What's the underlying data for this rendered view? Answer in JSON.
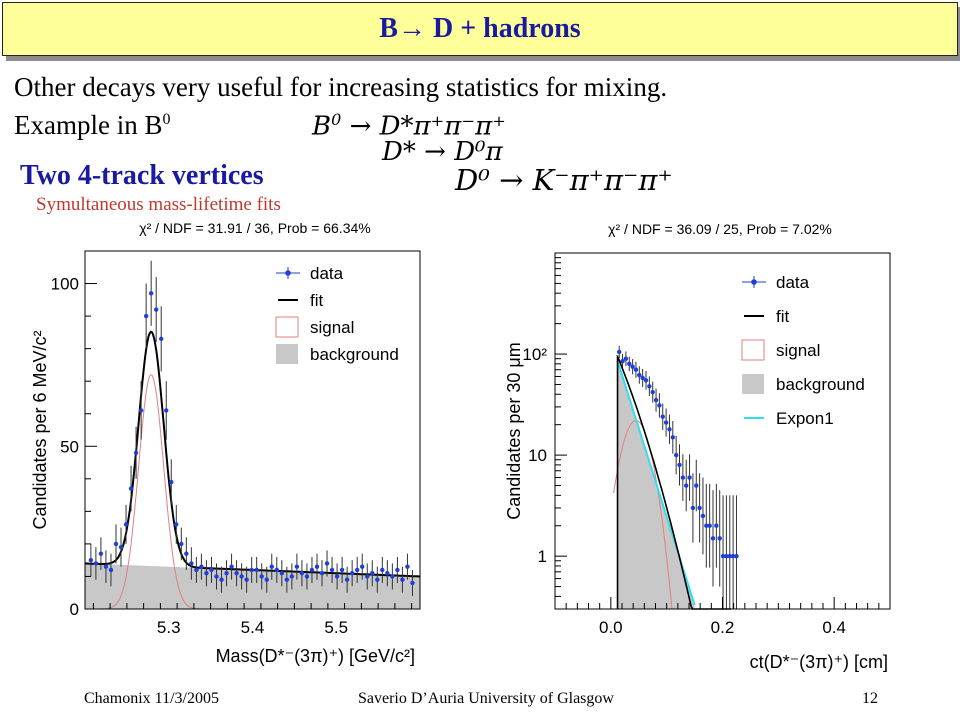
{
  "slide": {
    "title": "B→ D + hadrons",
    "line1": "Other decays very useful for increasing statistics for mixing.",
    "line2_prefix": "Example in B",
    "line2_sup": "0",
    "subtitle": "Two 4-track vertices",
    "note": "Symultaneous mass-lifetime fits"
  },
  "equations": {
    "eq1": {
      "lhs": "B",
      "lhs_sup": "0",
      "arrow": "→",
      "rhs": "D*π⁺π⁻π⁺"
    },
    "eq2": {
      "lhs": "D*",
      "arrow": "→",
      "rhs": "D⁰π"
    },
    "eq3": {
      "lhs": "D⁰",
      "arrow": "→",
      "rhs": "K⁻π⁺π⁻π⁺"
    }
  },
  "footer": {
    "left": "Chamonix 11/3/2005",
    "center": "Saverio D’Auria University of Glasgow",
    "page": "12"
  },
  "colors": {
    "title_bg": "#ffff99",
    "title_text": "#1a1aa0",
    "note": "#c0392b",
    "data": "#1f3fd9",
    "signal": "#e08080",
    "background": "#c8c8c8",
    "expon": "#33ddee"
  },
  "chart_data": [
    {
      "type": "line",
      "title": "χ² / NDF = 31.91 / 36, Prob = 66.34%",
      "xlabel": "Mass(D*⁻(3π)⁺)  [GeV/c²]",
      "ylabel": "Candidates per 6 MeV/c²",
      "xlim": [
        5.2,
        5.6
      ],
      "ylim": [
        0,
        110
      ],
      "x_ticks": [
        5.3,
        5.4,
        5.5
      ],
      "y_ticks": [
        0,
        50,
        100
      ],
      "legend": [
        "data",
        "fit",
        "signal",
        "background"
      ],
      "legend_position": "top-right",
      "data_points": {
        "x": [
          5.207,
          5.213,
          5.219,
          5.225,
          5.231,
          5.237,
          5.243,
          5.249,
          5.255,
          5.261,
          5.267,
          5.273,
          5.279,
          5.285,
          5.291,
          5.297,
          5.303,
          5.309,
          5.315,
          5.321,
          5.327,
          5.333,
          5.339,
          5.345,
          5.351,
          5.357,
          5.363,
          5.369,
          5.375,
          5.381,
          5.387,
          5.393,
          5.399,
          5.405,
          5.411,
          5.417,
          5.423,
          5.429,
          5.435,
          5.441,
          5.447,
          5.453,
          5.459,
          5.465,
          5.471,
          5.477,
          5.483,
          5.489,
          5.495,
          5.501,
          5.507,
          5.513,
          5.519,
          5.525,
          5.531,
          5.537,
          5.543,
          5.549,
          5.555,
          5.561,
          5.567,
          5.573,
          5.579,
          5.585,
          5.591
        ],
        "y": [
          15,
          14,
          17,
          13,
          12,
          20,
          19,
          26,
          37,
          48,
          61,
          90,
          97,
          92,
          83,
          61,
          39,
          26,
          20,
          17,
          14,
          12,
          13,
          11,
          12,
          10,
          9,
          11,
          13,
          11,
          10,
          9,
          12,
          12,
          10,
          9,
          13,
          12,
          11,
          9,
          10,
          13,
          11,
          10,
          12,
          13,
          11,
          14,
          12,
          10,
          12,
          9,
          11,
          12,
          13,
          10,
          11,
          9,
          12,
          11,
          10,
          12,
          9,
          13,
          8
        ],
        "err": [
          5,
          5,
          5,
          5,
          5,
          6,
          6,
          6,
          7,
          8,
          9,
          10,
          10,
          10,
          10,
          9,
          7,
          6,
          5,
          5,
          5,
          4,
          4,
          4,
          4,
          4,
          4,
          4,
          4,
          4,
          4,
          4,
          4,
          4,
          4,
          4,
          4,
          4,
          4,
          4,
          4,
          4,
          4,
          4,
          4,
          4,
          4,
          4,
          4,
          4,
          4,
          4,
          4,
          4,
          4,
          4,
          4,
          4,
          4,
          4,
          4,
          4,
          4,
          4,
          4
        ]
      },
      "fit": {
        "peak_mean": 5.279,
        "peak_sigma": 0.015,
        "peak_height": 72,
        "background_start": 14,
        "background_end": 10
      }
    },
    {
      "type": "line",
      "title": "χ² / NDF = 36.09 / 25, Prob = 7.02%",
      "xlabel": "ct(D*⁻(3π)⁺)  [cm]",
      "ylabel": "Candidates per 30 μm",
      "log_y": true,
      "xlim": [
        -0.1,
        0.5
      ],
      "ylim": [
        0.3,
        1000
      ],
      "x_ticks": [
        0.0,
        0.2,
        0.4
      ],
      "x_tick_labels": [
        "0.0",
        "0.2",
        "0.4"
      ],
      "y_ticks": [
        1,
        10,
        100
      ],
      "y_tick_labels": [
        "1",
        "10",
        "10²"
      ],
      "legend": [
        "data",
        "fit",
        "signal",
        "background",
        "Expon1"
      ],
      "legend_position": "top-right",
      "data_points": {
        "x": [
          0.015,
          0.021,
          0.027,
          0.033,
          0.039,
          0.045,
          0.051,
          0.057,
          0.063,
          0.069,
          0.075,
          0.081,
          0.087,
          0.093,
          0.099,
          0.105,
          0.111,
          0.117,
          0.123,
          0.129,
          0.135,
          0.141,
          0.147,
          0.153,
          0.159,
          0.165,
          0.171,
          0.177,
          0.183,
          0.189,
          0.195,
          0.201,
          0.207,
          0.213,
          0.219,
          0.225
        ],
        "y": [
          105,
          85,
          90,
          80,
          75,
          70,
          62,
          58,
          55,
          48,
          42,
          35,
          31,
          24,
          21,
          18,
          15,
          10,
          8,
          6,
          5,
          6,
          3,
          5,
          3,
          2.5,
          2,
          2,
          1.5,
          2,
          1.5,
          1,
          1,
          1,
          1,
          1
        ],
        "err_factor": [
          1.15,
          1.18,
          1.18,
          1.18,
          1.19,
          1.2,
          1.22,
          1.23,
          1.24,
          1.25,
          1.27,
          1.3,
          1.32,
          1.35,
          1.38,
          1.4,
          1.45,
          1.55,
          1.6,
          1.7,
          1.8,
          1.7,
          2.2,
          1.8,
          2.2,
          2.4,
          2.6,
          2.6,
          3,
          2.6,
          3,
          4,
          4,
          4,
          4,
          4
        ]
      },
      "fit": {
        "start": 0.012,
        "peak": 95,
        "slope": 17.5,
        "expon_end": 0.15,
        "signal_peak": 22
      }
    }
  ]
}
